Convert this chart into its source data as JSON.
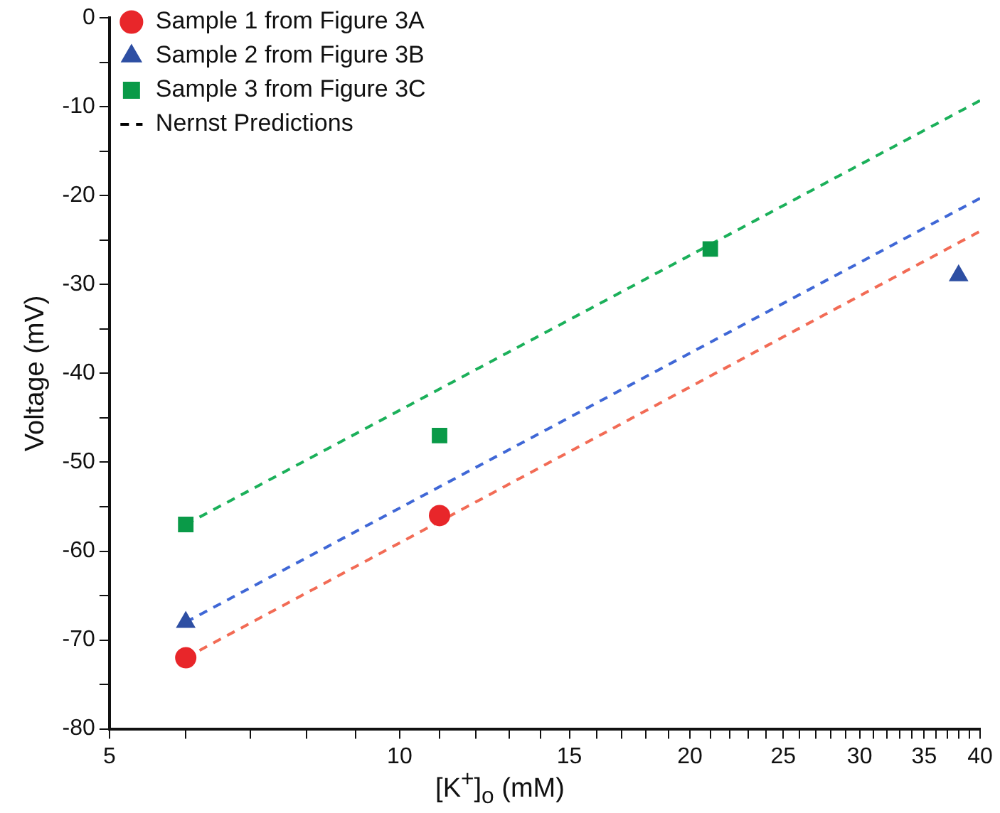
{
  "chart_data": {
    "type": "scatter",
    "xlabel": "[K$^{+}$]$_{o}$ (mM)",
    "ylabel": "Voltage (mV)",
    "log": "x",
    "xlim": [
      5,
      40
    ],
    "ylim": [
      -80,
      0
    ],
    "xticks": [
      5,
      {
        "value": 6,
        "label": null
      },
      {
        "value": 7,
        "label": null
      },
      {
        "value": 8,
        "label": null
      },
      {
        "value": 9,
        "label": null
      },
      10,
      {
        "value": 11,
        "label": null
      },
      {
        "value": 12,
        "label": null
      },
      {
        "value": 13,
        "label": null
      },
      {
        "value": 14,
        "label": null
      },
      15,
      {
        "value": 16,
        "label": null
      },
      {
        "value": 17,
        "label": null
      },
      {
        "value": 18,
        "label": null
      },
      {
        "value": 19,
        "label": null
      },
      20,
      {
        "value": 21,
        "label": null
      },
      {
        "value": 22,
        "label": null
      },
      {
        "value": 23,
        "label": null
      },
      {
        "value": 24,
        "label": null
      },
      25,
      {
        "value": 26,
        "label": null
      },
      {
        "value": 27,
        "label": null
      },
      {
        "value": 28,
        "label": null
      },
      {
        "value": 29,
        "label": null
      },
      30,
      {
        "value": 31,
        "label": null
      },
      {
        "value": 32,
        "label": null
      },
      {
        "value": 33,
        "label": null
      },
      {
        "value": 34,
        "label": null
      },
      35,
      {
        "value": 36,
        "label": null
      },
      {
        "value": 37,
        "label": null
      },
      {
        "value": 38,
        "label": null
      },
      {
        "value": 39,
        "label": null
      },
      40
    ],
    "yticks": [
      -80,
      {
        "value": -75,
        "label": null
      },
      -70,
      {
        "value": -65,
        "label": null
      },
      -60,
      {
        "value": -55,
        "label": null
      },
      -50,
      {
        "value": -45,
        "label": null
      },
      -40,
      {
        "value": -35,
        "label": null
      },
      -30,
      {
        "value": -25,
        "label": null
      },
      -20,
      {
        "value": -15,
        "label": null
      },
      -10,
      {
        "value": -5,
        "label": null
      },
      0
    ],
    "grid": false,
    "legend": "top left",
    "series": [
      {
        "name": "Sample 1 from Figure 3A",
        "marker": "circle",
        "color": "#e8262a",
        "x": [
          6,
          11
        ],
        "values": [
          -72,
          -56
        ]
      },
      {
        "name": "Sample 2 from Figure 3B",
        "marker": "triangle",
        "color": "#2e4fa3",
        "x": [
          6,
          38
        ],
        "values": [
          -68,
          -29
        ]
      },
      {
        "name": "Sample 3 from Figure 3C",
        "marker": "square",
        "color": "#0a9a48",
        "x": [
          6,
          11,
          21
        ],
        "values": [
          -57,
          -47,
          -26
        ]
      },
      {
        "name": "Nernst Predictions",
        "type": "line",
        "marker": "none",
        "line_style": "dashed",
        "color": "#000000"
      },
      {
        "type": "line",
        "marker": "none",
        "line_style": "dashed",
        "color": "#f26b55",
        "x": [
          6,
          40
        ],
        "values": [
          -72,
          -24
        ]
      },
      {
        "type": "line",
        "marker": "none",
        "line_style": "dashed",
        "color": "#3f67d6",
        "x": [
          6,
          40
        ],
        "values": [
          -68,
          -20.3
        ]
      },
      {
        "type": "line",
        "marker": "none",
        "line_style": "dashed",
        "color": "#1bb05a",
        "x": [
          6,
          40
        ],
        "values": [
          -57,
          -9.3
        ]
      }
    ]
  }
}
